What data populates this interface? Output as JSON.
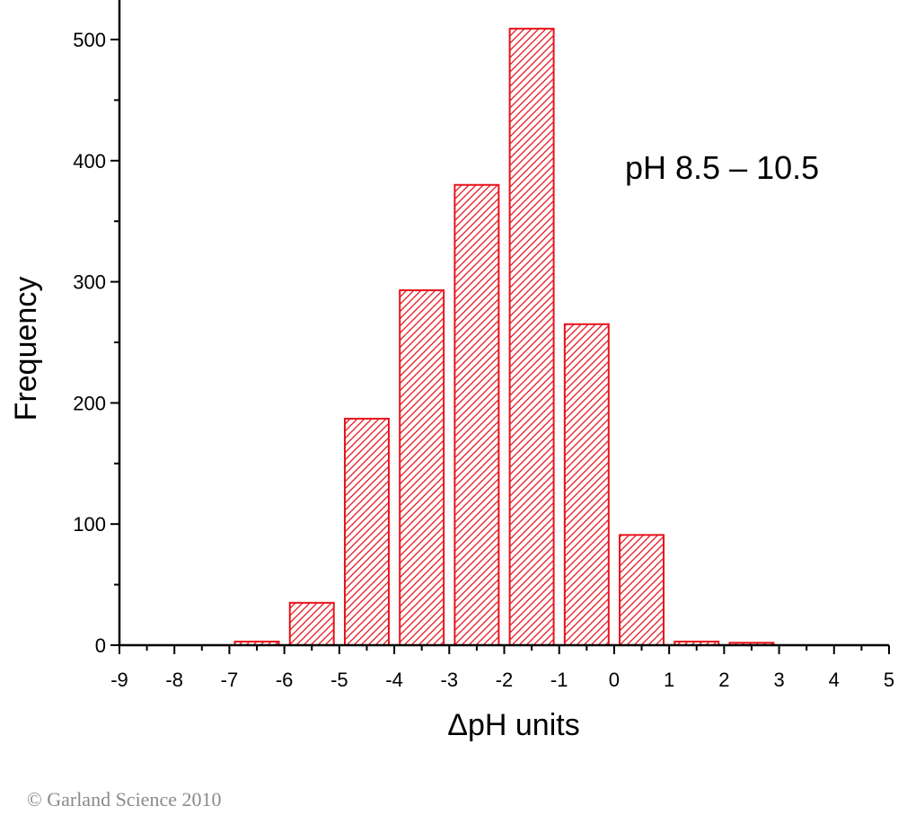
{
  "chart_data": {
    "type": "bar",
    "x_bin_starts": [
      -7,
      -6,
      -5,
      -4,
      -3,
      -2,
      -1,
      0,
      1,
      2
    ],
    "x_bin_width": 1,
    "values": [
      3,
      35,
      187,
      293,
      380,
      509,
      265,
      91,
      3,
      2
    ],
    "xlabel": "ΔpH units",
    "ylabel": "Frequency",
    "xlim": [
      -9,
      5
    ],
    "ylim": [
      0,
      500
    ],
    "x_ticks": [
      -9,
      -8,
      -7,
      -6,
      -5,
      -4,
      -3,
      -2,
      -1,
      0,
      1,
      2,
      3,
      4,
      5
    ],
    "y_ticks": [
      0,
      100,
      200,
      300,
      400,
      500
    ],
    "annotation": "pH 8.5 – 10.5",
    "bar_color": "#e8141b",
    "fill_pattern": "diagonal-hatch",
    "grid": false
  },
  "footer": {
    "copyright": "© Garland Science 2010"
  }
}
